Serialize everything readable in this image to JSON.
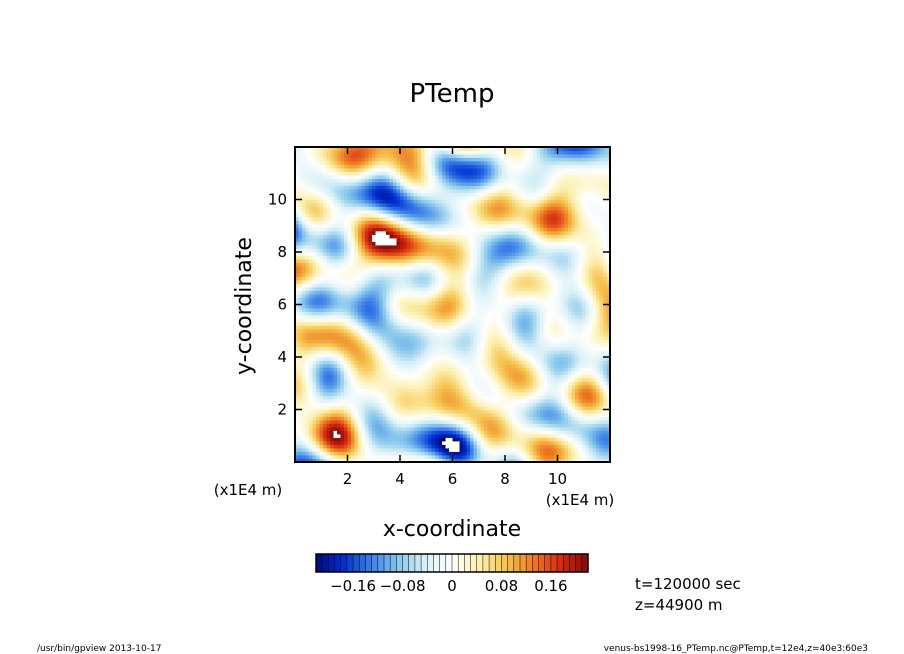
{
  "chart_data": {
    "type": "heatmap",
    "title": "PTemp",
    "xlabel": "x-coordinate",
    "ylabel": "y-coordinate",
    "x_unit_label": "(x1E4 m)",
    "y_unit_label": "(x1E4 m)",
    "xlim": [
      0,
      12
    ],
    "ylim": [
      0,
      12
    ],
    "x_ticks": [
      "2",
      "4",
      "6",
      "8",
      "10"
    ],
    "y_ticks": [
      "2",
      "4",
      "6",
      "8",
      "10"
    ],
    "colorbar": {
      "min": -0.22,
      "max": 0.22,
      "step": 0.01,
      "tick_labels": [
        "−0.16",
        "−0.08",
        "0",
        "0.08",
        "0.16"
      ],
      "tick_values": [
        -0.16,
        -0.08,
        0,
        0.08,
        0.16
      ],
      "palette": [
        "#000a7a",
        "#0030d0",
        "#3a7de8",
        "#86c6ec",
        "#d8f0f6",
        "#ffffff",
        "#fbf0b0",
        "#f6c24e",
        "#ee7a22",
        "#d42a12",
        "#8a0808"
      ]
    },
    "annotations": [
      "t=120000 sec",
      "z=44900 m"
    ]
  },
  "footer": {
    "left": "/usr/bin/gpview   2013-10-17",
    "right": "venus-bs1998-16_PTemp.nc@PTemp,t=12e4,z=40e3:60e3"
  }
}
